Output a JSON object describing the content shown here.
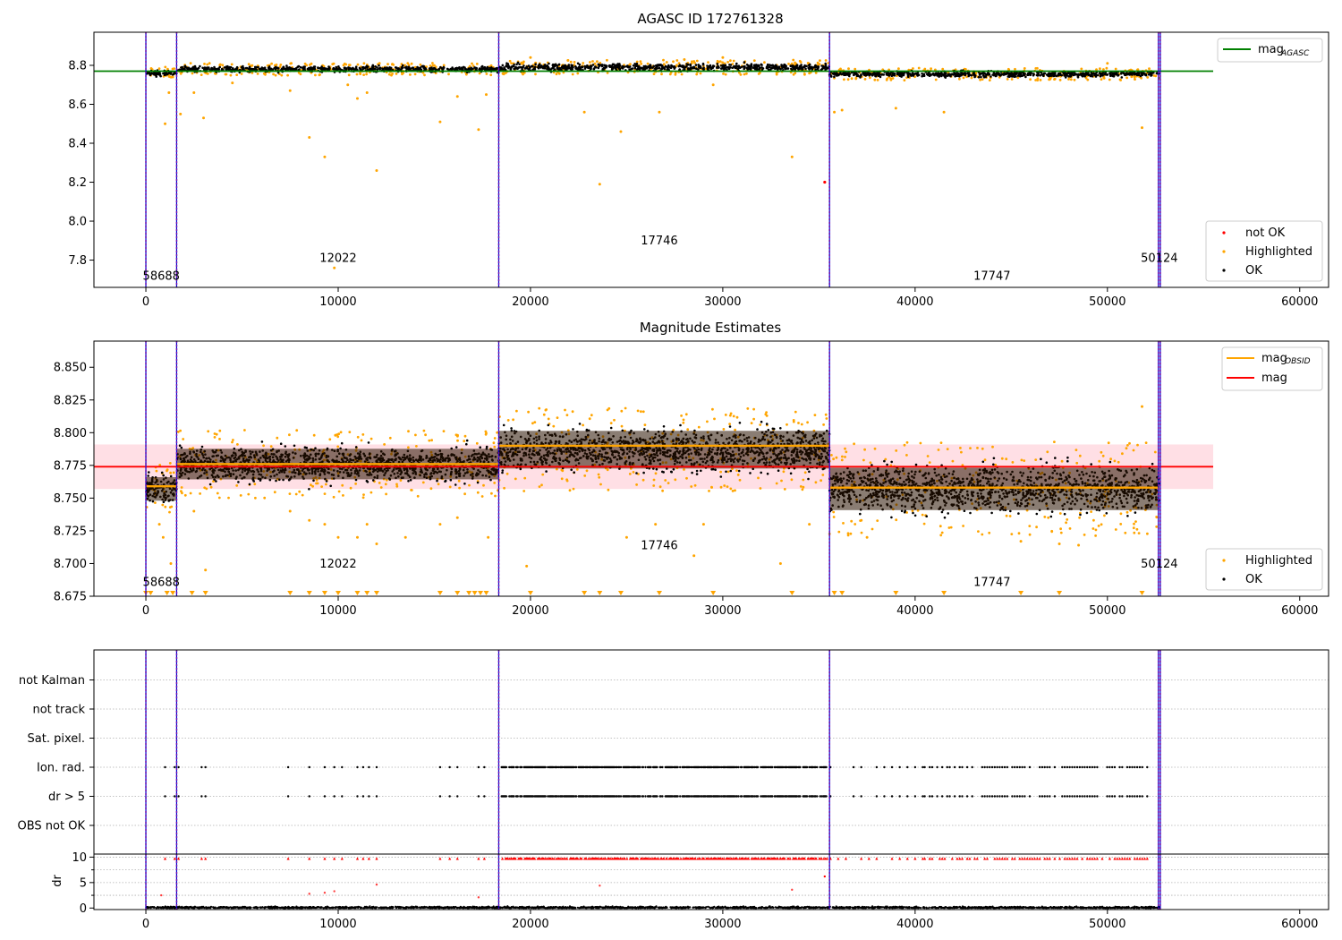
{
  "chart_data": [
    {
      "type": "scatter",
      "title": "AGASC ID 172761328",
      "xlabel": "",
      "ylabel": "",
      "xlim": [
        -2700,
        61500
      ],
      "ylim": [
        7.66,
        8.97
      ],
      "xticks": [
        0,
        10000,
        20000,
        30000,
        40000,
        50000,
        60000
      ],
      "xtick_labels": [
        "0",
        "10000",
        "20000",
        "30000",
        "40000",
        "50000",
        "60000"
      ],
      "yticks": [
        7.8,
        8.0,
        8.2,
        8.4,
        8.6,
        8.8
      ],
      "ytick_labels": [
        "7.8",
        "8.0",
        "8.2",
        "8.4",
        "8.6",
        "8.8"
      ],
      "boundaries": [
        0,
        1600,
        18350,
        35550,
        52650,
        52750
      ],
      "obsids": [
        {
          "label": "58688",
          "x": 800,
          "y": 7.7
        },
        {
          "label": "12022",
          "x": 10000,
          "y": 7.79
        },
        {
          "label": "17746",
          "x": 26700,
          "y": 7.88
        },
        {
          "label": "17747",
          "x": 44000,
          "y": 7.7
        },
        {
          "label": "50124",
          "x": 52700,
          "y": 7.79
        }
      ],
      "mag_agasc": {
        "value": 8.77,
        "x0": -2700,
        "x1": 55500
      },
      "segments": [
        {
          "x0": 0,
          "x1": 1600,
          "center": 8.76,
          "spread": 0.015
        },
        {
          "x0": 1600,
          "x1": 18350,
          "center": 8.78,
          "spread": 0.015
        },
        {
          "x0": 18350,
          "x1": 35550,
          "center": 8.79,
          "spread": 0.018
        },
        {
          "x0": 35550,
          "x1": 52700,
          "center": 8.755,
          "spread": 0.015
        }
      ],
      "highlighted": [
        [
          1000,
          8.5
        ],
        [
          1200,
          8.66
        ],
        [
          1400,
          8.74
        ],
        [
          1800,
          8.55
        ],
        [
          2500,
          8.66
        ],
        [
          3000,
          8.53
        ],
        [
          4500,
          8.71
        ],
        [
          7500,
          8.67
        ],
        [
          8500,
          8.43
        ],
        [
          9300,
          8.33
        ],
        [
          10500,
          8.7
        ],
        [
          11000,
          8.63
        ],
        [
          11500,
          8.66
        ],
        [
          12000,
          8.26
        ],
        [
          15300,
          8.51
        ],
        [
          16200,
          8.64
        ],
        [
          17300,
          8.47
        ],
        [
          17700,
          8.65
        ],
        [
          22800,
          8.56
        ],
        [
          23600,
          8.19
        ],
        [
          24700,
          8.46
        ],
        [
          26700,
          8.56
        ],
        [
          29500,
          8.7
        ],
        [
          33600,
          8.33
        ],
        [
          35800,
          8.56
        ],
        [
          36200,
          8.57
        ],
        [
          39000,
          8.58
        ],
        [
          41500,
          8.56
        ],
        [
          51800,
          8.48
        ],
        [
          9800,
          7.76
        ],
        [
          20000,
          8.84
        ],
        [
          30000,
          8.84
        ],
        [
          28000,
          8.83
        ],
        [
          50000,
          8.81
        ]
      ],
      "not_ok": [
        [
          35300,
          8.2
        ]
      ],
      "legend": {
        "position": "lower-right",
        "entries": [
          {
            "label": "not OK",
            "color": "#ff0000"
          },
          {
            "label": "Highlighted",
            "color": "#ffa500"
          },
          {
            "label": "OK",
            "color": "#000000"
          }
        ]
      },
      "legend_top": {
        "position": "upper-right",
        "entries": [
          {
            "label": "mag",
            "sub": "AGASC",
            "color": "#008000"
          }
        ]
      }
    },
    {
      "type": "scatter",
      "title": "Magnitude Estimates",
      "xlabel": "",
      "ylabel": "",
      "xlim": [
        -2700,
        61500
      ],
      "ylim": [
        8.675,
        8.87
      ],
      "xticks": [
        0,
        10000,
        20000,
        30000,
        40000,
        50000,
        60000
      ],
      "xtick_labels": [
        "0",
        "10000",
        "20000",
        "30000",
        "40000",
        "50000",
        "60000"
      ],
      "yticks": [
        8.675,
        8.7,
        8.725,
        8.75,
        8.775,
        8.8,
        8.825,
        8.85
      ],
      "ytick_labels": [
        "8.675",
        "8.700",
        "8.725",
        "8.750",
        "8.775",
        "8.800",
        "8.825",
        "8.850"
      ],
      "boundaries": [
        0,
        1600,
        18350,
        35550,
        52650,
        52750
      ],
      "obsids": [
        {
          "label": "58688",
          "x": 800,
          "y": 8.683
        },
        {
          "label": "12022",
          "x": 10000,
          "y": 8.697
        },
        {
          "label": "17746",
          "x": 26700,
          "y": 8.711
        },
        {
          "label": "17747",
          "x": 44000,
          "y": 8.683
        },
        {
          "label": "50124",
          "x": 52700,
          "y": 8.697
        }
      ],
      "mag": {
        "value": 8.774,
        "band": [
          8.757,
          8.791
        ],
        "x0": -2700,
        "x1": 55500
      },
      "mag_obsid": [
        {
          "x0": 0,
          "x1": 1600,
          "value": 8.759
        },
        {
          "x0": 1600,
          "x1": 18350,
          "value": 8.776
        },
        {
          "x0": 18350,
          "x1": 35550,
          "value": 8.79
        },
        {
          "x0": 35550,
          "x1": 52700,
          "value": 8.758
        }
      ],
      "segments": [
        {
          "x0": 0,
          "x1": 1600,
          "center": 8.757,
          "spread": 0.01
        },
        {
          "x0": 1600,
          "x1": 18350,
          "center": 8.776,
          "spread": 0.013
        },
        {
          "x0": 18350,
          "x1": 35550,
          "center": 8.787,
          "spread": 0.016
        },
        {
          "x0": 35550,
          "x1": 52700,
          "center": 8.757,
          "spread": 0.018
        }
      ],
      "highlighted": [
        [
          700,
          8.73
        ],
        [
          900,
          8.72
        ],
        [
          1300,
          8.7
        ],
        [
          2500,
          8.74
        ],
        [
          3100,
          8.695
        ],
        [
          7500,
          8.74
        ],
        [
          8500,
          8.733
        ],
        [
          9300,
          8.73
        ],
        [
          10000,
          8.72
        ],
        [
          11000,
          8.72
        ],
        [
          11500,
          8.73
        ],
        [
          12000,
          8.715
        ],
        [
          13500,
          8.72
        ],
        [
          15300,
          8.73
        ],
        [
          16200,
          8.735
        ],
        [
          17800,
          8.72
        ],
        [
          19800,
          8.698
        ],
        [
          25000,
          8.72
        ],
        [
          26500,
          8.73
        ],
        [
          28500,
          8.706
        ],
        [
          29000,
          8.73
        ],
        [
          33000,
          8.7
        ],
        [
          34500,
          8.73
        ],
        [
          37500,
          8.72
        ],
        [
          45500,
          8.717
        ],
        [
          47500,
          8.715
        ],
        [
          48500,
          8.714
        ],
        [
          51800,
          8.82
        ]
      ],
      "legend": {
        "position": "lower-right",
        "entries": [
          {
            "label": "Highlighted",
            "color": "#ffa500"
          },
          {
            "label": "OK",
            "color": "#000000"
          }
        ]
      },
      "legend_top": {
        "position": "upper-right",
        "entries": [
          {
            "label": "mag",
            "sub": "OBSID",
            "color": "#ffa500"
          },
          {
            "label": "mag",
            "sub": "",
            "color": "#ff0000"
          }
        ]
      }
    },
    {
      "type": "scatter",
      "title": "",
      "xlabel": "",
      "ylabel": "",
      "xlim": [
        -2700,
        61500
      ],
      "flags": [
        "OBS not OK",
        "dr > 5",
        "Ion. rad.",
        "Sat. pixel.",
        "not track",
        "not Kalman"
      ],
      "flag_events": {
        "dr > 5": [
          1000,
          1500,
          1700,
          2900,
          3100,
          7400,
          8500,
          9300,
          9800,
          10200,
          11000,
          11300,
          11600,
          12000,
          15300,
          15800,
          16200,
          17300,
          17600
        ],
        "Ion. rad.": [
          1000,
          1500,
          1700,
          2900,
          3100,
          7400,
          8500,
          9300,
          9800,
          10200,
          11000,
          11300,
          11600,
          12000,
          15300,
          15800,
          16200,
          17300,
          17600
        ]
      },
      "dense_flag_ranges": [
        [
          18500,
          35500,
          40
        ],
        [
          35600,
          40500,
          400
        ],
        [
          40500,
          52300,
          130
        ]
      ]
    },
    {
      "type": "scatter",
      "title": "",
      "xlabel": "",
      "ylabel": "dr",
      "xlim": [
        -2700,
        61500
      ],
      "ylim": [
        -0.3,
        10.6
      ],
      "xticks": [
        0,
        10000,
        20000,
        30000,
        40000,
        50000,
        60000
      ],
      "xtick_labels": [
        "0",
        "10000",
        "20000",
        "30000",
        "40000",
        "50000",
        "60000"
      ],
      "yticks": [
        0,
        5,
        10
      ],
      "ytick_labels": [
        "0",
        "5",
        "10"
      ],
      "outliers": [
        [
          8500,
          2.8
        ],
        [
          9300,
          3.0
        ],
        [
          9800,
          3.3
        ],
        [
          12000,
          4.6
        ],
        [
          23600,
          4.4
        ],
        [
          33600,
          3.6
        ],
        [
          35300,
          6.2
        ],
        [
          17300,
          2.1
        ],
        [
          800,
          2.5
        ]
      ]
    }
  ]
}
